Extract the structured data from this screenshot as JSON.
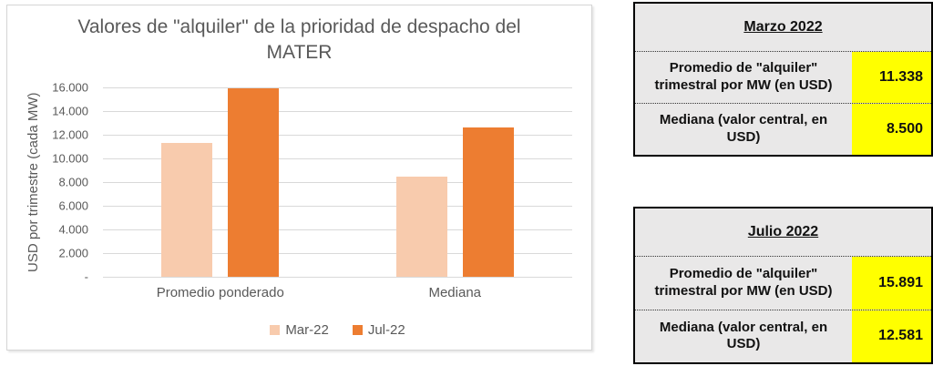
{
  "chart_data": {
    "type": "bar",
    "title": "Valores de \"alquiler\" de la prioridad de despacho del MATER",
    "ylabel": "USD por trimestre (cada MW)",
    "xlabel": "",
    "categories": [
      "Promedio ponderado",
      "Mediana"
    ],
    "series": [
      {
        "name": "Mar-22",
        "color": "#F8CBAD",
        "values": [
          11338,
          8500
        ]
      },
      {
        "name": "Jul-22",
        "color": "#ED7D31",
        "values": [
          15891,
          12581
        ]
      }
    ],
    "ylim": [
      0,
      16000
    ],
    "ytick_step": 2000,
    "ytick_labels": [
      "-",
      "2.000",
      "4.000",
      "6.000",
      "8.000",
      "10.000",
      "12.000",
      "14.000",
      "16.000"
    ],
    "grid": true,
    "legend_position": "bottom-center",
    "text_color": "#595959",
    "gridline_color": "#D9D9D9"
  },
  "tables": [
    {
      "header": "Marzo 2022",
      "highlight_color": "#FFFF00",
      "rows": [
        {
          "label": "Promedio de \"alquiler\" trimestral por MW (en USD)",
          "value": "11.338"
        },
        {
          "label": "Mediana (valor central, en USD)",
          "value": "8.500"
        }
      ]
    },
    {
      "header": "Julio 2022",
      "highlight_color": "#FFFF00",
      "rows": [
        {
          "label": "Promedio de \"alquiler\" trimestral por MW (en USD)",
          "value": "15.891"
        },
        {
          "label": "Mediana (valor central, en USD)",
          "value": "12.581"
        }
      ]
    }
  ]
}
